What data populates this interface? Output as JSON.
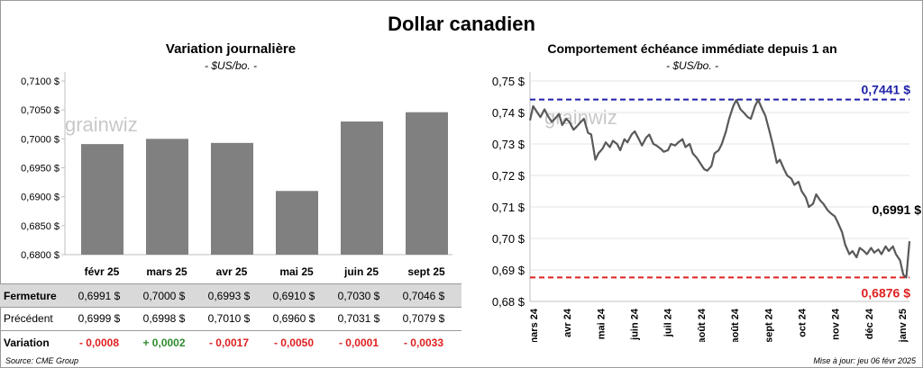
{
  "title": "Dollar canadien",
  "left_chart_title": "Variation  journalière",
  "left_chart_subtitle": "- $US/bo. -",
  "right_chart_title": "Comportement échéance immédiate depuis 1 an",
  "right_chart_subtitle": "- $US/bo. -",
  "watermark": "grainwiz",
  "source": "Source: CME Group",
  "update": "Mise à jour: jeu 06 févr 2025",
  "table": {
    "row_labels": {
      "fermeture": "Fermeture",
      "precedent": "Précédent",
      "variation": "Variation"
    },
    "fermeture": [
      "0,6991  $",
      "0,7000  $",
      "0,6993  $",
      "0,6910  $",
      "0,7030  $",
      "0,7046  $"
    ],
    "precedent": [
      "0,6999  $",
      "0,6998  $",
      "0,7010  $",
      "0,6960  $",
      "0,7031  $",
      "0,7079  $"
    ],
    "variation": [
      "- 0,0008",
      "+ 0,0002",
      "- 0,0017",
      "- 0,0050",
      "- 0,0001",
      "- 0,0033"
    ],
    "variation_sign": [
      "neg",
      "pos",
      "neg",
      "neg",
      "neg",
      "neg"
    ]
  },
  "colors": {
    "bar": "#808080",
    "line": "#595959",
    "high": "#1f1fa8",
    "low": "#e02020",
    "positive": "#2e8b2e",
    "negative": "#e02020"
  },
  "chart_data": [
    {
      "type": "bar",
      "categories": [
        "févr 25",
        "mars 25",
        "avr 25",
        "mai 25",
        "juin 25",
        "sept 25"
      ],
      "values": [
        0.6991,
        0.7,
        0.6993,
        0.691,
        0.703,
        0.7046
      ],
      "ylim": [
        0.68,
        0.71
      ],
      "yticks": [
        "0,6800 $",
        "0,6850 $",
        "0,6900 $",
        "0,6950 $",
        "0,7000 $",
        "0,7050 $",
        "0,7100 $"
      ],
      "grid": false,
      "legend": "none"
    },
    {
      "type": "line",
      "ylim": [
        0.68,
        0.75
      ],
      "yticks": [
        "0,68 $",
        "0,69 $",
        "0,70 $",
        "0,71 $",
        "0,72 $",
        "0,73 $",
        "0,74 $",
        "0,75 $"
      ],
      "xticks": [
        "mars 24",
        "avr 24",
        "mai 24",
        "juin 24",
        "juil 24",
        "août 24",
        "août 24",
        "sept 24",
        "oct 24",
        "nov 24",
        "déc 24",
        "janv 25"
      ],
      "x": [
        "2024-02-06",
        "2024-02-09",
        "2024-02-13",
        "2024-02-16",
        "2024-02-20",
        "2024-02-23",
        "2024-02-27",
        "2024-03-01",
        "2024-03-05",
        "2024-03-08",
        "2024-03-12",
        "2024-03-15",
        "2024-03-19",
        "2024-03-22",
        "2024-03-26",
        "2024-03-29",
        "2024-04-02",
        "2024-04-05",
        "2024-04-09",
        "2024-04-12",
        "2024-04-16",
        "2024-04-19",
        "2024-04-23",
        "2024-04-26",
        "2024-04-30",
        "2024-05-03",
        "2024-05-07",
        "2024-05-10",
        "2024-05-14",
        "2024-05-17",
        "2024-05-21",
        "2024-05-24",
        "2024-05-28",
        "2024-05-31",
        "2024-06-04",
        "2024-06-07",
        "2024-06-11",
        "2024-06-14",
        "2024-06-18",
        "2024-06-21",
        "2024-06-25",
        "2024-06-28",
        "2024-07-02",
        "2024-07-05",
        "2024-07-09",
        "2024-07-12",
        "2024-07-16",
        "2024-07-19",
        "2024-07-23",
        "2024-07-26",
        "2024-07-30",
        "2024-08-02",
        "2024-08-06",
        "2024-08-09",
        "2024-08-13",
        "2024-08-16",
        "2024-08-20",
        "2024-08-23",
        "2024-08-27",
        "2024-08-30",
        "2024-09-03",
        "2024-09-06",
        "2024-09-10",
        "2024-09-13",
        "2024-09-17",
        "2024-09-20",
        "2024-09-24",
        "2024-09-27",
        "2024-10-01",
        "2024-10-04",
        "2024-10-08",
        "2024-10-11",
        "2024-10-15",
        "2024-10-18",
        "2024-10-22",
        "2024-10-25",
        "2024-10-29",
        "2024-11-01",
        "2024-11-05",
        "2024-11-08",
        "2024-11-12",
        "2024-11-15",
        "2024-11-19",
        "2024-11-22",
        "2024-11-26",
        "2024-11-29",
        "2024-12-03",
        "2024-12-06",
        "2024-12-10",
        "2024-12-13",
        "2024-12-17",
        "2024-12-20",
        "2024-12-24",
        "2024-12-27",
        "2024-12-31",
        "2025-01-03",
        "2025-01-07",
        "2025-01-10",
        "2025-01-14",
        "2025-01-17",
        "2025-01-21",
        "2025-01-24",
        "2025-01-28",
        "2025-01-31",
        "2025-02-03",
        "2025-02-06"
      ],
      "series": [
        {
          "values": [
            0.7375,
            0.742,
            0.74,
            0.7385,
            0.741,
            0.739,
            0.737,
            0.738,
            0.7395,
            0.736,
            0.738,
            0.737,
            0.7345,
            0.7355,
            0.737,
            0.738,
            0.7335,
            0.733,
            0.725,
            0.727,
            0.7285,
            0.7305,
            0.729,
            0.731,
            0.73,
            0.728,
            0.7315,
            0.7305,
            0.733,
            0.734,
            0.7315,
            0.7295,
            0.732,
            0.733,
            0.73,
            0.7295,
            0.7285,
            0.7275,
            0.728,
            0.73,
            0.7295,
            0.7305,
            0.7315,
            0.729,
            0.73,
            0.727,
            0.7255,
            0.724,
            0.722,
            0.7215,
            0.723,
            0.727,
            0.728,
            0.73,
            0.734,
            0.738,
            0.742,
            0.744,
            0.741,
            0.74,
            0.7385,
            0.738,
            0.742,
            0.744,
            0.741,
            0.739,
            0.734,
            0.73,
            0.724,
            0.725,
            0.722,
            0.72,
            0.719,
            0.717,
            0.718,
            0.715,
            0.713,
            0.71,
            0.711,
            0.714,
            0.712,
            0.711,
            0.709,
            0.708,
            0.707,
            0.705,
            0.702,
            0.698,
            0.695,
            0.696,
            0.694,
            0.697,
            0.696,
            0.695,
            0.697,
            0.6955,
            0.6965,
            0.695,
            0.6975,
            0.696,
            0.6975,
            0.695,
            0.693,
            0.6885,
            0.6876,
            0.6991
          ]
        }
      ],
      "max": {
        "value": 0.7441,
        "label": "0,7441  $"
      },
      "min": {
        "value": 0.6876,
        "label": "0,6876  $"
      },
      "last": {
        "value": 0.6991,
        "label": "0,6991 $"
      },
      "grid": true,
      "legend": "none"
    }
  ]
}
